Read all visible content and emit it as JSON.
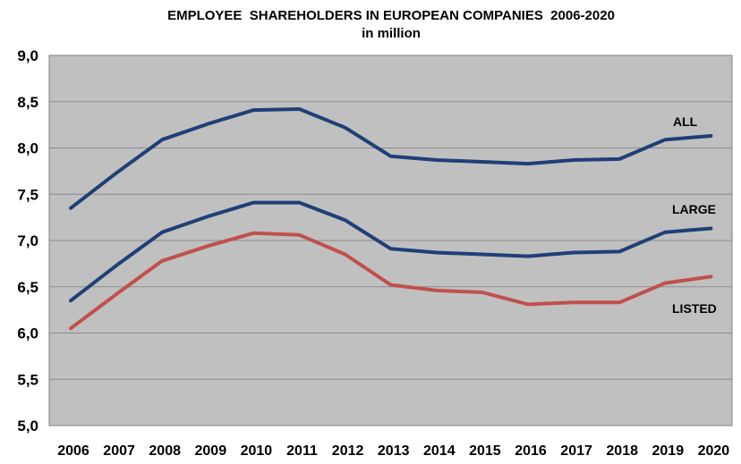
{
  "chart_data": {
    "type": "line",
    "title": "EMPLOYEE  SHAREHOLDERS IN EUROPEAN COMPANIES  2006-2020",
    "subtitle": "in million",
    "xlabel": "",
    "ylabel": "",
    "categories": [
      "2006",
      "2007",
      "2008",
      "2009",
      "2010",
      "2011",
      "2012",
      "2013",
      "2014",
      "2015",
      "2016",
      "2017",
      "2018",
      "2019",
      "2020"
    ],
    "ylim": [
      5.0,
      9.0
    ],
    "y_ticks": [
      "9,0",
      "8,5",
      "8,0",
      "7,5",
      "7,0",
      "6,5",
      "6,0",
      "5,5",
      "5,0"
    ],
    "y_tick_values": [
      9.0,
      8.5,
      8.0,
      7.5,
      7.0,
      6.5,
      6.0,
      5.5,
      5.0
    ],
    "grid": true,
    "plot_background": "#c0c0c0",
    "series": [
      {
        "name": "ALL",
        "color": "#1f3f77",
        "values": [
          7.35,
          7.73,
          8.09,
          8.26,
          8.41,
          8.42,
          8.22,
          7.91,
          7.87,
          7.85,
          7.83,
          7.87,
          7.88,
          8.09,
          8.13
        ]
      },
      {
        "name": "LARGE",
        "color": "#1f3f77",
        "values": [
          6.35,
          6.73,
          7.09,
          7.26,
          7.41,
          7.41,
          7.22,
          6.91,
          6.87,
          6.85,
          6.83,
          6.87,
          6.88,
          7.09,
          7.13
        ]
      },
      {
        "name": "LISTED",
        "color": "#c0504d",
        "values": [
          6.05,
          6.42,
          6.78,
          6.94,
          7.08,
          7.06,
          6.85,
          6.52,
          6.46,
          6.44,
          6.31,
          6.33,
          6.33,
          6.54,
          6.61
        ]
      }
    ]
  }
}
